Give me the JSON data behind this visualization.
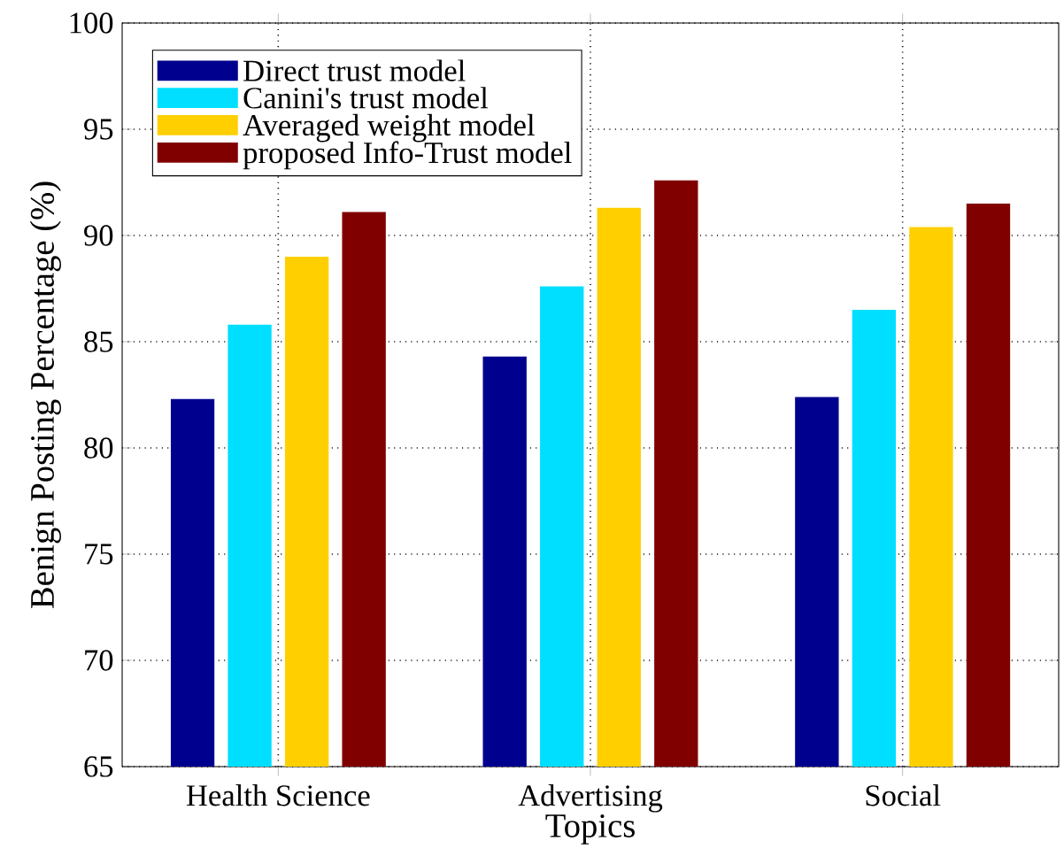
{
  "chart_data": {
    "type": "bar",
    "xlabel": "Topics",
    "ylabel": "Benign Posting Percentage (%)",
    "categories": [
      "Health Science",
      "Advertising",
      "Social"
    ],
    "series": [
      {
        "name": "Direct trust model",
        "color": "#00008f",
        "values": [
          82.3,
          84.3,
          82.4
        ]
      },
      {
        "name": "Canini's trust model",
        "color": "#00dfff",
        "values": [
          85.8,
          87.6,
          86.5
        ]
      },
      {
        "name": "Averaged weight model",
        "color": "#ffcf00",
        "values": [
          89.0,
          91.3,
          90.4
        ]
      },
      {
        "name": "proposed Info-Trust model",
        "color": "#800000",
        "values": [
          91.1,
          92.6,
          91.5
        ]
      }
    ],
    "ylim": [
      65,
      100
    ],
    "yticks": [
      65,
      70,
      75,
      80,
      85,
      90,
      95,
      100
    ],
    "grid": true,
    "legend": "top left"
  }
}
